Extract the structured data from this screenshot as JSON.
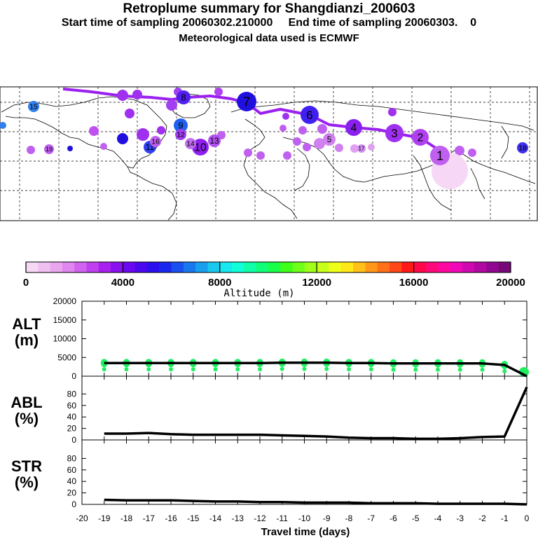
{
  "header": {
    "title": "Retroplume summary for Shangdianzi_200603",
    "subtitle": "Start time of sampling 20060302.210000     End time of sampling 20060303.    0",
    "met": "Meteorological data used is ECMWF"
  },
  "colorbar": {
    "ticks": [
      "0",
      "4000",
      "8000",
      "12000",
      "16000",
      "20000"
    ],
    "label": "Altitude (m)",
    "colors": [
      "#f4d8f4",
      "#efc0f0",
      "#e9a6ef",
      "#df86ef",
      "#d064ef",
      "#bf40ef",
      "#a820ef",
      "#8a10ef",
      "#6a08ef",
      "#4a08ef",
      "#2a10ef",
      "#1a28ef",
      "#1a50ef",
      "#1a78ef",
      "#18a0ef",
      "#18c8ef",
      "#18e8ef",
      "#10ffd8",
      "#10ffa8",
      "#10ff78",
      "#18ff48",
      "#40ff18",
      "#70ff18",
      "#a0ff18",
      "#c8ff18",
      "#f0ff18",
      "#ffe818",
      "#ffc018",
      "#ff9818",
      "#ff7018",
      "#ff4818",
      "#ff1818",
      "#ff0848",
      "#ff0878",
      "#ff08a0",
      "#f008b8",
      "#d008b0",
      "#b008a0",
      "#900890",
      "#780878"
    ]
  },
  "map": {
    "markers": [
      {
        "label": "1",
        "size": "large"
      },
      {
        "label": "2"
      },
      {
        "label": "3"
      },
      {
        "label": "4"
      },
      {
        "label": "5"
      },
      {
        "label": "6"
      },
      {
        "label": "7"
      },
      {
        "label": "8"
      },
      {
        "label": "9"
      },
      {
        "label": "10"
      },
      {
        "label": "11"
      },
      {
        "label": "12"
      },
      {
        "label": "13"
      },
      {
        "label": "14"
      },
      {
        "label": "15"
      },
      {
        "label": "16"
      },
      {
        "label": "17"
      },
      {
        "label": "18"
      },
      {
        "label": "19"
      }
    ]
  },
  "chart_data": [
    {
      "type": "line",
      "panel": "ALT",
      "ylabel": "ALT\n(m)",
      "ylabel_lines": [
        "ALT",
        "(m)"
      ],
      "ylim": [
        0,
        20000
      ],
      "yticks": [
        "0",
        "5000",
        "10000",
        "15000",
        "20000"
      ],
      "x": [
        -19,
        -18,
        -17,
        -16,
        -15,
        -14,
        -13,
        -12,
        -11,
        -10,
        -9,
        -8,
        -7,
        -6,
        -5,
        -4,
        -3,
        -2,
        -1,
        0
      ],
      "values": [
        3500,
        3500,
        3500,
        3500,
        3500,
        3500,
        3500,
        3500,
        3600,
        3600,
        3600,
        3500,
        3500,
        3400,
        3400,
        3400,
        3400,
        3400,
        3000,
        0
      ],
      "scatter_color": "#20f060"
    },
    {
      "type": "line",
      "panel": "ABL",
      "ylabel_lines": [
        "ABL",
        "(%)"
      ],
      "ylim": [
        0,
        100
      ],
      "yticks": [
        "0",
        "20",
        "40",
        "60",
        "80"
      ],
      "x": [
        -19,
        -18,
        -17,
        -16,
        -15,
        -14,
        -13,
        -12,
        -11,
        -10,
        -9,
        -8,
        -7,
        -6,
        -5,
        -4,
        -3,
        -2,
        -1,
        0
      ],
      "values": [
        11,
        11,
        12,
        10,
        9,
        9,
        9,
        9,
        8,
        7,
        6,
        4,
        3,
        3,
        2,
        2,
        3,
        5,
        6,
        92
      ]
    },
    {
      "type": "line",
      "panel": "STR",
      "ylabel_lines": [
        "STR",
        "(%)"
      ],
      "ylim": [
        0,
        100
      ],
      "yticks": [
        "0",
        "20",
        "40",
        "60",
        "80"
      ],
      "x": [
        -19,
        -18,
        -17,
        -16,
        -15,
        -14,
        -13,
        -12,
        -11,
        -10,
        -9,
        -8,
        -7,
        -6,
        -5,
        -4,
        -3,
        -2,
        -1,
        0
      ],
      "values": [
        8,
        7,
        7,
        7,
        6,
        5,
        5,
        4,
        4,
        3,
        3,
        3,
        2,
        2,
        2,
        1,
        1,
        1,
        1,
        0
      ]
    }
  ],
  "xaxis": {
    "ticks": [
      "-20",
      "-19",
      "-18",
      "-17",
      "-16",
      "-15",
      "-14",
      "-13",
      "-12",
      "-11",
      "-10",
      "-9",
      "-8",
      "-7",
      "-6",
      "-5",
      "-4",
      "-3",
      "-2",
      "-1",
      "0"
    ],
    "label": "Travel time (days)"
  }
}
